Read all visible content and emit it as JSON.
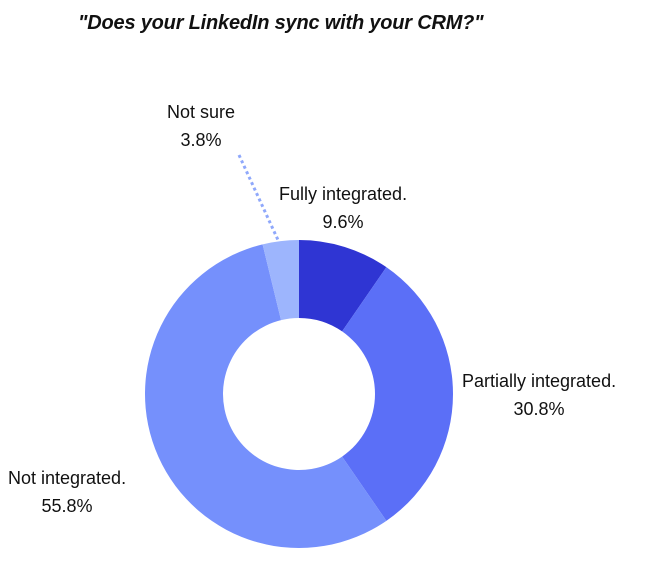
{
  "chart_data": {
    "type": "pie",
    "variant": "donut",
    "title": "\"Does your LinkedIn sync with your CRM?\"",
    "categories": [
      "Fully integrated.",
      "Partially integrated.",
      "Not integrated.",
      "Not sure"
    ],
    "values": [
      9.6,
      30.8,
      55.8,
      3.8
    ],
    "value_labels": [
      "9.6%",
      "30.8%",
      "55.8%",
      "3.8%"
    ],
    "colors": [
      "#2f35d3",
      "#5b6ff7",
      "#7590fc",
      "#9db5fd"
    ],
    "start_angle_deg": 0,
    "direction": "clockwise",
    "legend": "none",
    "labels_position": "outside"
  },
  "labels": {
    "fully": {
      "name": "Fully integrated.",
      "pct": "9.6%"
    },
    "partially": {
      "name": "Partially integrated.",
      "pct": "30.8%"
    },
    "not_integrated": {
      "name": "Not integrated.",
      "pct": "55.8%"
    },
    "not_sure": {
      "name": "Not sure",
      "pct": "3.8%"
    }
  },
  "leader_color": "#8fa8fb"
}
